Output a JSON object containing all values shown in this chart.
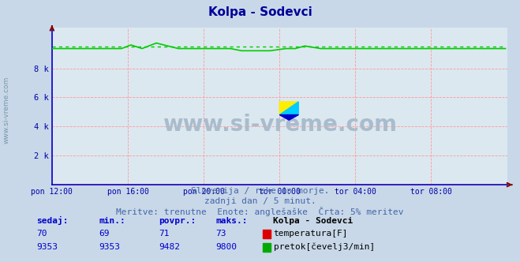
{
  "title": "Kolpa - Sodevci",
  "title_color": "#000099",
  "title_fontsize": 11,
  "bg_color": "#c8d8e8",
  "plot_bg_color": "#dce8f0",
  "watermark_text": "www.si-vreme.com",
  "watermark_color": "#aabccc",
  "xlabel_color": "#0000aa",
  "ylabel_color": "#0000aa",
  "grid_color_major": "#ff9999",
  "grid_color_minor": "#ffcccc",
  "spine_color": "#0000cc",
  "arrow_color": "#880000",
  "x_tick_labels": [
    "pon 12:00",
    "pon 16:00",
    "pon 20:00",
    "tor 00:00",
    "tor 04:00",
    "tor 08:00"
  ],
  "x_tick_positions": [
    0,
    48,
    96,
    144,
    192,
    240
  ],
  "y_tick_labels": [
    "2 k",
    "4 k",
    "6 k",
    "8 k"
  ],
  "y_tick_positions": [
    2000,
    4000,
    6000,
    8000
  ],
  "ylim": [
    0,
    10800
  ],
  "xlim": [
    0,
    288
  ],
  "temp_color": "#ff0000",
  "flow_color": "#00cc00",
  "flow_5pct_color": "#00cc00",
  "n_points": 288,
  "flow_base": 9353,
  "flow_5pct": 9482,
  "subtitle_lines": [
    "Slovenija / reke in morje.",
    "zadnji dan / 5 minut.",
    "Meritve: trenutne  Enote: anglešaške  Črta: 5% meritev"
  ],
  "subtitle_color": "#4466aa",
  "subtitle_fontsize": 8,
  "table_headers": [
    "sedaj:",
    "min.:",
    "povpr.:",
    "maks.:"
  ],
  "table_header_color": "#0000cc",
  "table_fontsize": 8,
  "station_label": "Kolpa - Sodevci",
  "rows": [
    {
      "values": [
        "70",
        "69",
        "71",
        "73"
      ],
      "label": "temperatura[F]",
      "color": "#dd0000"
    },
    {
      "values": [
        "9353",
        "9353",
        "9482",
        "9800"
      ],
      "label": "pretok[čevelj3/min]",
      "color": "#00aa00"
    }
  ],
  "wm_logo_colors": [
    "#ffee00",
    "#00ccff",
    "#0000cc"
  ]
}
